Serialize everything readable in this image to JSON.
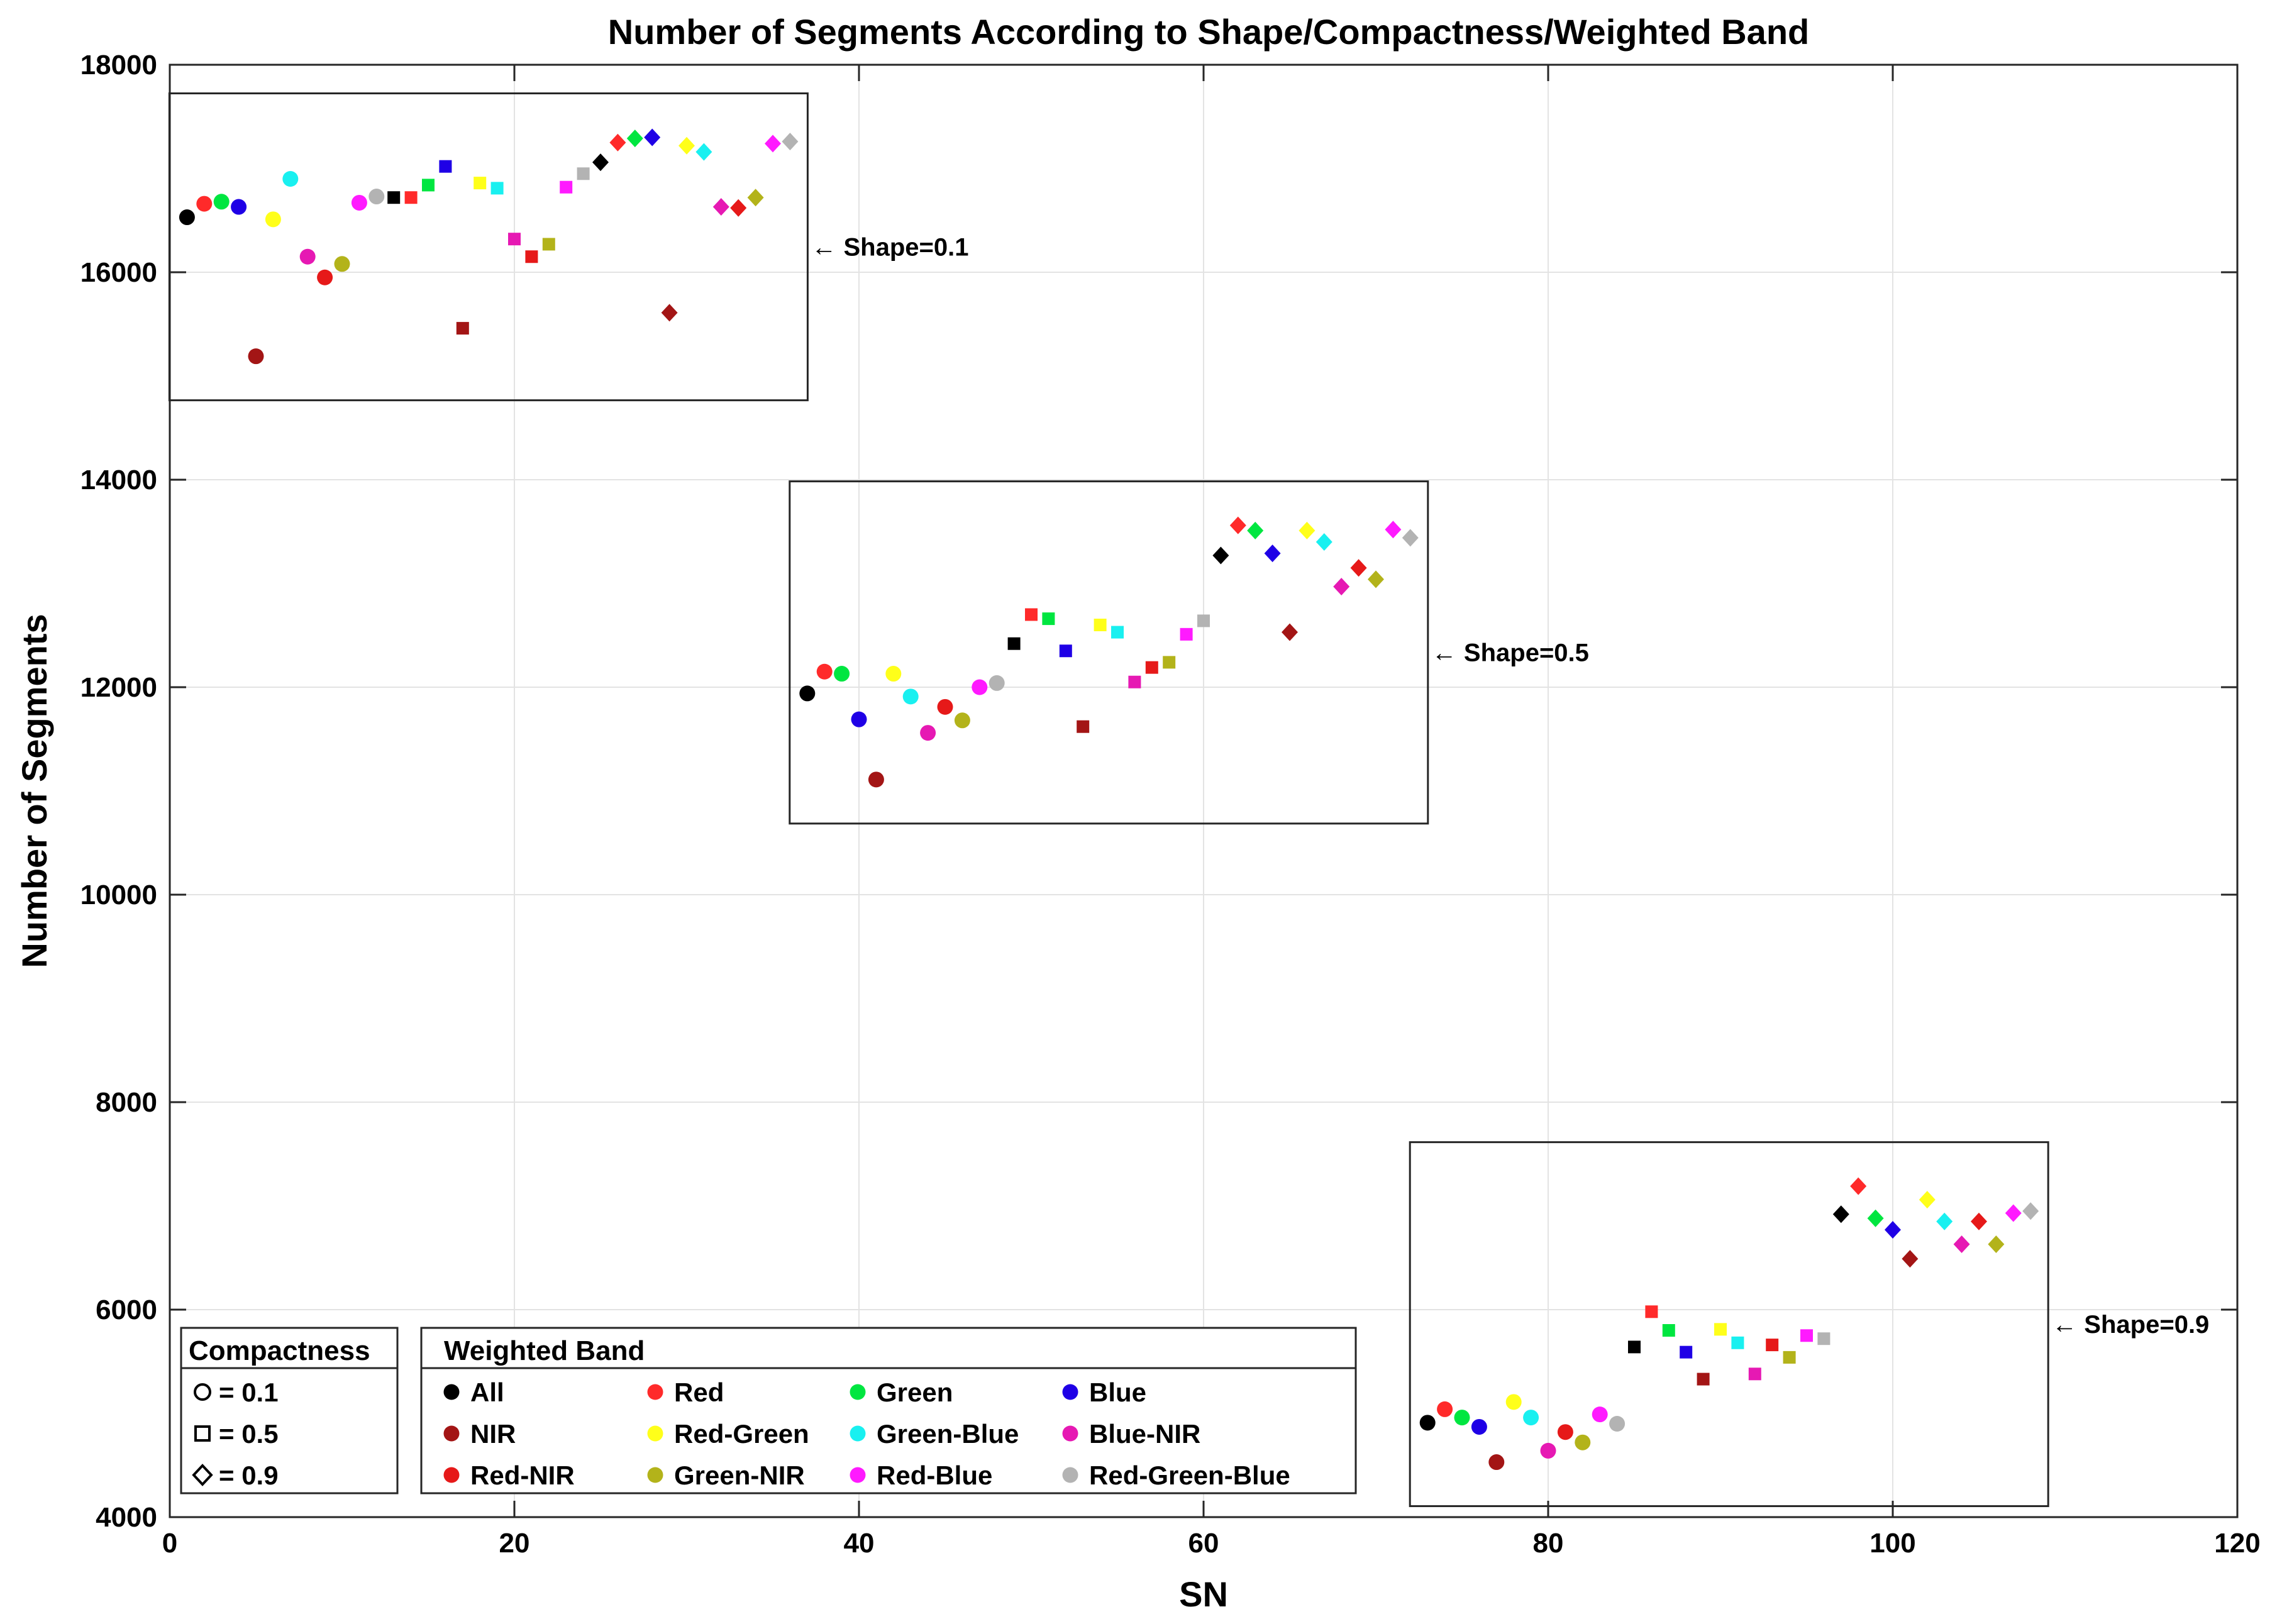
{
  "chart_data": {
    "type": "scatter",
    "title": "Number of Segments According to Shape/Compactness/Weighted Band",
    "xlabel": "SN",
    "ylabel": "Number of Segments",
    "xlim": [
      0,
      120
    ],
    "ylim": [
      4000,
      18000
    ],
    "xticks": [
      0,
      20,
      40,
      60,
      80,
      100,
      120
    ],
    "yticks": [
      4000,
      6000,
      8000,
      10000,
      12000,
      14000,
      16000,
      18000
    ],
    "grid": true,
    "bands": [
      "All",
      "Red",
      "Green",
      "Blue",
      "NIR",
      "Red-Green",
      "Green-Blue",
      "Blue-NIR",
      "Red-NIR",
      "Green-NIR",
      "Red-Blue",
      "Red-Green-Blue"
    ],
    "band_colors": [
      "#000000",
      "#ff2a2a",
      "#00e640",
      "#1f00e6",
      "#a31515",
      "#ffff1a",
      "#19f0f0",
      "#e619b3",
      "#e61919",
      "#b3b31a",
      "#ff1aff",
      "#b3b3b3"
    ],
    "compactness_markers": [
      "circle",
      "square",
      "diamond"
    ],
    "points": [
      {
        "sn": 1,
        "y": 16530,
        "band": 0,
        "shape": 0.1,
        "compactness": 0.1
      },
      {
        "sn": 2,
        "y": 16660,
        "band": 1,
        "shape": 0.1,
        "compactness": 0.1
      },
      {
        "sn": 3,
        "y": 16680,
        "band": 2,
        "shape": 0.1,
        "compactness": 0.1
      },
      {
        "sn": 4,
        "y": 16630,
        "band": 3,
        "shape": 0.1,
        "compactness": 0.1
      },
      {
        "sn": 5,
        "y": 15190,
        "band": 4,
        "shape": 0.1,
        "compactness": 0.1
      },
      {
        "sn": 6,
        "y": 16510,
        "band": 5,
        "shape": 0.1,
        "compactness": 0.1
      },
      {
        "sn": 7,
        "y": 16900,
        "band": 6,
        "shape": 0.1,
        "compactness": 0.1
      },
      {
        "sn": 8,
        "y": 16150,
        "band": 7,
        "shape": 0.1,
        "compactness": 0.1
      },
      {
        "sn": 9,
        "y": 15950,
        "band": 8,
        "shape": 0.1,
        "compactness": 0.1
      },
      {
        "sn": 10,
        "y": 16080,
        "band": 9,
        "shape": 0.1,
        "compactness": 0.1
      },
      {
        "sn": 11,
        "y": 16670,
        "band": 10,
        "shape": 0.1,
        "compactness": 0.1
      },
      {
        "sn": 12,
        "y": 16730,
        "band": 11,
        "shape": 0.1,
        "compactness": 0.1
      },
      {
        "sn": 13,
        "y": 16720,
        "band": 0,
        "shape": 0.1,
        "compactness": 0.5
      },
      {
        "sn": 14,
        "y": 16720,
        "band": 1,
        "shape": 0.1,
        "compactness": 0.5
      },
      {
        "sn": 15,
        "y": 16840,
        "band": 2,
        "shape": 0.1,
        "compactness": 0.5
      },
      {
        "sn": 16,
        "y": 17020,
        "band": 3,
        "shape": 0.1,
        "compactness": 0.5
      },
      {
        "sn": 17,
        "y": 15460,
        "band": 4,
        "shape": 0.1,
        "compactness": 0.5
      },
      {
        "sn": 18,
        "y": 16860,
        "band": 5,
        "shape": 0.1,
        "compactness": 0.5
      },
      {
        "sn": 19,
        "y": 16810,
        "band": 6,
        "shape": 0.1,
        "compactness": 0.5
      },
      {
        "sn": 20,
        "y": 16320,
        "band": 7,
        "shape": 0.1,
        "compactness": 0.5
      },
      {
        "sn": 21,
        "y": 16150,
        "band": 8,
        "shape": 0.1,
        "compactness": 0.5
      },
      {
        "sn": 22,
        "y": 16270,
        "band": 9,
        "shape": 0.1,
        "compactness": 0.5
      },
      {
        "sn": 23,
        "y": 16820,
        "band": 10,
        "shape": 0.1,
        "compactness": 0.5
      },
      {
        "sn": 24,
        "y": 16950,
        "band": 11,
        "shape": 0.1,
        "compactness": 0.5
      },
      {
        "sn": 25,
        "y": 17060,
        "band": 0,
        "shape": 0.1,
        "compactness": 0.9
      },
      {
        "sn": 26,
        "y": 17250,
        "band": 1,
        "shape": 0.1,
        "compactness": 0.9
      },
      {
        "sn": 27,
        "y": 17290,
        "band": 2,
        "shape": 0.1,
        "compactness": 0.9
      },
      {
        "sn": 28,
        "y": 17300,
        "band": 3,
        "shape": 0.1,
        "compactness": 0.9
      },
      {
        "sn": 29,
        "y": 15610,
        "band": 4,
        "shape": 0.1,
        "compactness": 0.9
      },
      {
        "sn": 30,
        "y": 17220,
        "band": 5,
        "shape": 0.1,
        "compactness": 0.9
      },
      {
        "sn": 31,
        "y": 17160,
        "band": 6,
        "shape": 0.1,
        "compactness": 0.9
      },
      {
        "sn": 32,
        "y": 16630,
        "band": 7,
        "shape": 0.1,
        "compactness": 0.9
      },
      {
        "sn": 33,
        "y": 16620,
        "band": 8,
        "shape": 0.1,
        "compactness": 0.9
      },
      {
        "sn": 34,
        "y": 16720,
        "band": 9,
        "shape": 0.1,
        "compactness": 0.9
      },
      {
        "sn": 35,
        "y": 17240,
        "band": 10,
        "shape": 0.1,
        "compactness": 0.9
      },
      {
        "sn": 36,
        "y": 17260,
        "band": 11,
        "shape": 0.1,
        "compactness": 0.9
      },
      {
        "sn": 37,
        "y": 11940,
        "band": 0,
        "shape": 0.5,
        "compactness": 0.1
      },
      {
        "sn": 38,
        "y": 12150,
        "band": 1,
        "shape": 0.5,
        "compactness": 0.1
      },
      {
        "sn": 39,
        "y": 12130,
        "band": 2,
        "shape": 0.5,
        "compactness": 0.1
      },
      {
        "sn": 40,
        "y": 11690,
        "band": 3,
        "shape": 0.5,
        "compactness": 0.1
      },
      {
        "sn": 41,
        "y": 11110,
        "band": 4,
        "shape": 0.5,
        "compactness": 0.1
      },
      {
        "sn": 42,
        "y": 12130,
        "band": 5,
        "shape": 0.5,
        "compactness": 0.1
      },
      {
        "sn": 43,
        "y": 11910,
        "band": 6,
        "shape": 0.5,
        "compactness": 0.1
      },
      {
        "sn": 44,
        "y": 11560,
        "band": 7,
        "shape": 0.5,
        "compactness": 0.1
      },
      {
        "sn": 45,
        "y": 11810,
        "band": 8,
        "shape": 0.5,
        "compactness": 0.1
      },
      {
        "sn": 46,
        "y": 11680,
        "band": 9,
        "shape": 0.5,
        "compactness": 0.1
      },
      {
        "sn": 47,
        "y": 12000,
        "band": 10,
        "shape": 0.5,
        "compactness": 0.1
      },
      {
        "sn": 48,
        "y": 12040,
        "band": 11,
        "shape": 0.5,
        "compactness": 0.1
      },
      {
        "sn": 49,
        "y": 12420,
        "band": 0,
        "shape": 0.5,
        "compactness": 0.5
      },
      {
        "sn": 50,
        "y": 12700,
        "band": 1,
        "shape": 0.5,
        "compactness": 0.5
      },
      {
        "sn": 51,
        "y": 12660,
        "band": 2,
        "shape": 0.5,
        "compactness": 0.5
      },
      {
        "sn": 52,
        "y": 12350,
        "band": 3,
        "shape": 0.5,
        "compactness": 0.5
      },
      {
        "sn": 53,
        "y": 11620,
        "band": 4,
        "shape": 0.5,
        "compactness": 0.5
      },
      {
        "sn": 54,
        "y": 12600,
        "band": 5,
        "shape": 0.5,
        "compactness": 0.5
      },
      {
        "sn": 55,
        "y": 12530,
        "band": 6,
        "shape": 0.5,
        "compactness": 0.5
      },
      {
        "sn": 56,
        "y": 12050,
        "band": 7,
        "shape": 0.5,
        "compactness": 0.5
      },
      {
        "sn": 57,
        "y": 12190,
        "band": 8,
        "shape": 0.5,
        "compactness": 0.5
      },
      {
        "sn": 58,
        "y": 12240,
        "band": 9,
        "shape": 0.5,
        "compactness": 0.5
      },
      {
        "sn": 59,
        "y": 12510,
        "band": 10,
        "shape": 0.5,
        "compactness": 0.5
      },
      {
        "sn": 60,
        "y": 12640,
        "band": 11,
        "shape": 0.5,
        "compactness": 0.5
      },
      {
        "sn": 61,
        "y": 13270,
        "band": 0,
        "shape": 0.5,
        "compactness": 0.9
      },
      {
        "sn": 62,
        "y": 13560,
        "band": 1,
        "shape": 0.5,
        "compactness": 0.9
      },
      {
        "sn": 63,
        "y": 13510,
        "band": 2,
        "shape": 0.5,
        "compactness": 0.9
      },
      {
        "sn": 64,
        "y": 13290,
        "band": 3,
        "shape": 0.5,
        "compactness": 0.9
      },
      {
        "sn": 65,
        "y": 12530,
        "band": 4,
        "shape": 0.5,
        "compactness": 0.9
      },
      {
        "sn": 66,
        "y": 13510,
        "band": 5,
        "shape": 0.5,
        "compactness": 0.9
      },
      {
        "sn": 67,
        "y": 13400,
        "band": 6,
        "shape": 0.5,
        "compactness": 0.9
      },
      {
        "sn": 68,
        "y": 12970,
        "band": 7,
        "shape": 0.5,
        "compactness": 0.9
      },
      {
        "sn": 69,
        "y": 13150,
        "band": 8,
        "shape": 0.5,
        "compactness": 0.9
      },
      {
        "sn": 70,
        "y": 13040,
        "band": 9,
        "shape": 0.5,
        "compactness": 0.9
      },
      {
        "sn": 71,
        "y": 13520,
        "band": 10,
        "shape": 0.5,
        "compactness": 0.9
      },
      {
        "sn": 72,
        "y": 13440,
        "band": 11,
        "shape": 0.5,
        "compactness": 0.9
      },
      {
        "sn": 73,
        "y": 4910,
        "band": 0,
        "shape": 0.9,
        "compactness": 0.1
      },
      {
        "sn": 74,
        "y": 5040,
        "band": 1,
        "shape": 0.9,
        "compactness": 0.1
      },
      {
        "sn": 75,
        "y": 4960,
        "band": 2,
        "shape": 0.9,
        "compactness": 0.1
      },
      {
        "sn": 76,
        "y": 4870,
        "band": 3,
        "shape": 0.9,
        "compactness": 0.1
      },
      {
        "sn": 77,
        "y": 4530,
        "band": 4,
        "shape": 0.9,
        "compactness": 0.1
      },
      {
        "sn": 78,
        "y": 5110,
        "band": 5,
        "shape": 0.9,
        "compactness": 0.1
      },
      {
        "sn": 79,
        "y": 4960,
        "band": 6,
        "shape": 0.9,
        "compactness": 0.1
      },
      {
        "sn": 80,
        "y": 4640,
        "band": 7,
        "shape": 0.9,
        "compactness": 0.1
      },
      {
        "sn": 81,
        "y": 4820,
        "band": 8,
        "shape": 0.9,
        "compactness": 0.1
      },
      {
        "sn": 82,
        "y": 4720,
        "band": 9,
        "shape": 0.9,
        "compactness": 0.1
      },
      {
        "sn": 83,
        "y": 4990,
        "band": 10,
        "shape": 0.9,
        "compactness": 0.1
      },
      {
        "sn": 84,
        "y": 4900,
        "band": 11,
        "shape": 0.9,
        "compactness": 0.1
      },
      {
        "sn": 85,
        "y": 5640,
        "band": 0,
        "shape": 0.9,
        "compactness": 0.5
      },
      {
        "sn": 86,
        "y": 5980,
        "band": 1,
        "shape": 0.9,
        "compactness": 0.5
      },
      {
        "sn": 87,
        "y": 5800,
        "band": 2,
        "shape": 0.9,
        "compactness": 0.5
      },
      {
        "sn": 88,
        "y": 5590,
        "band": 3,
        "shape": 0.9,
        "compactness": 0.5
      },
      {
        "sn": 89,
        "y": 5330,
        "band": 4,
        "shape": 0.9,
        "compactness": 0.5
      },
      {
        "sn": 90,
        "y": 5810,
        "band": 5,
        "shape": 0.9,
        "compactness": 0.5
      },
      {
        "sn": 91,
        "y": 5680,
        "band": 6,
        "shape": 0.9,
        "compactness": 0.5
      },
      {
        "sn": 92,
        "y": 5380,
        "band": 7,
        "shape": 0.9,
        "compactness": 0.5
      },
      {
        "sn": 93,
        "y": 5660,
        "band": 8,
        "shape": 0.9,
        "compactness": 0.5
      },
      {
        "sn": 94,
        "y": 5540,
        "band": 9,
        "shape": 0.9,
        "compactness": 0.5
      },
      {
        "sn": 95,
        "y": 5750,
        "band": 10,
        "shape": 0.9,
        "compactness": 0.5
      },
      {
        "sn": 96,
        "y": 5720,
        "band": 11,
        "shape": 0.9,
        "compactness": 0.5
      },
      {
        "sn": 97,
        "y": 6920,
        "band": 0,
        "shape": 0.9,
        "compactness": 0.9
      },
      {
        "sn": 98,
        "y": 7190,
        "band": 1,
        "shape": 0.9,
        "compactness": 0.9
      },
      {
        "sn": 99,
        "y": 6880,
        "band": 2,
        "shape": 0.9,
        "compactness": 0.9
      },
      {
        "sn": 100,
        "y": 6770,
        "band": 3,
        "shape": 0.9,
        "compactness": 0.9
      },
      {
        "sn": 101,
        "y": 6490,
        "band": 4,
        "shape": 0.9,
        "compactness": 0.9
      },
      {
        "sn": 102,
        "y": 7060,
        "band": 5,
        "shape": 0.9,
        "compactness": 0.9
      },
      {
        "sn": 103,
        "y": 6850,
        "band": 6,
        "shape": 0.9,
        "compactness": 0.9
      },
      {
        "sn": 104,
        "y": 6630,
        "band": 7,
        "shape": 0.9,
        "compactness": 0.9
      },
      {
        "sn": 105,
        "y": 6850,
        "band": 8,
        "shape": 0.9,
        "compactness": 0.9
      },
      {
        "sn": 106,
        "y": 6630,
        "band": 9,
        "shape": 0.9,
        "compactness": 0.9
      },
      {
        "sn": 107,
        "y": 6930,
        "band": 10,
        "shape": 0.9,
        "compactness": 0.9
      },
      {
        "sn": 108,
        "y": 6950,
        "band": 11,
        "shape": 0.9,
        "compactness": 0.9
      }
    ],
    "groups": [
      {
        "label": "← Shape=0.1",
        "sn_range": [
          1,
          36
        ]
      },
      {
        "label": "← Shape=0.5",
        "sn_range": [
          37,
          72
        ]
      },
      {
        "label": "← Shape=0.9",
        "sn_range": [
          73,
          108
        ]
      }
    ],
    "legend_compactness": {
      "title": "Compactness",
      "items": [
        "= 0.1",
        "= 0.5",
        "= 0.9"
      ]
    },
    "legend_band": {
      "title": "Weighted Band"
    }
  }
}
